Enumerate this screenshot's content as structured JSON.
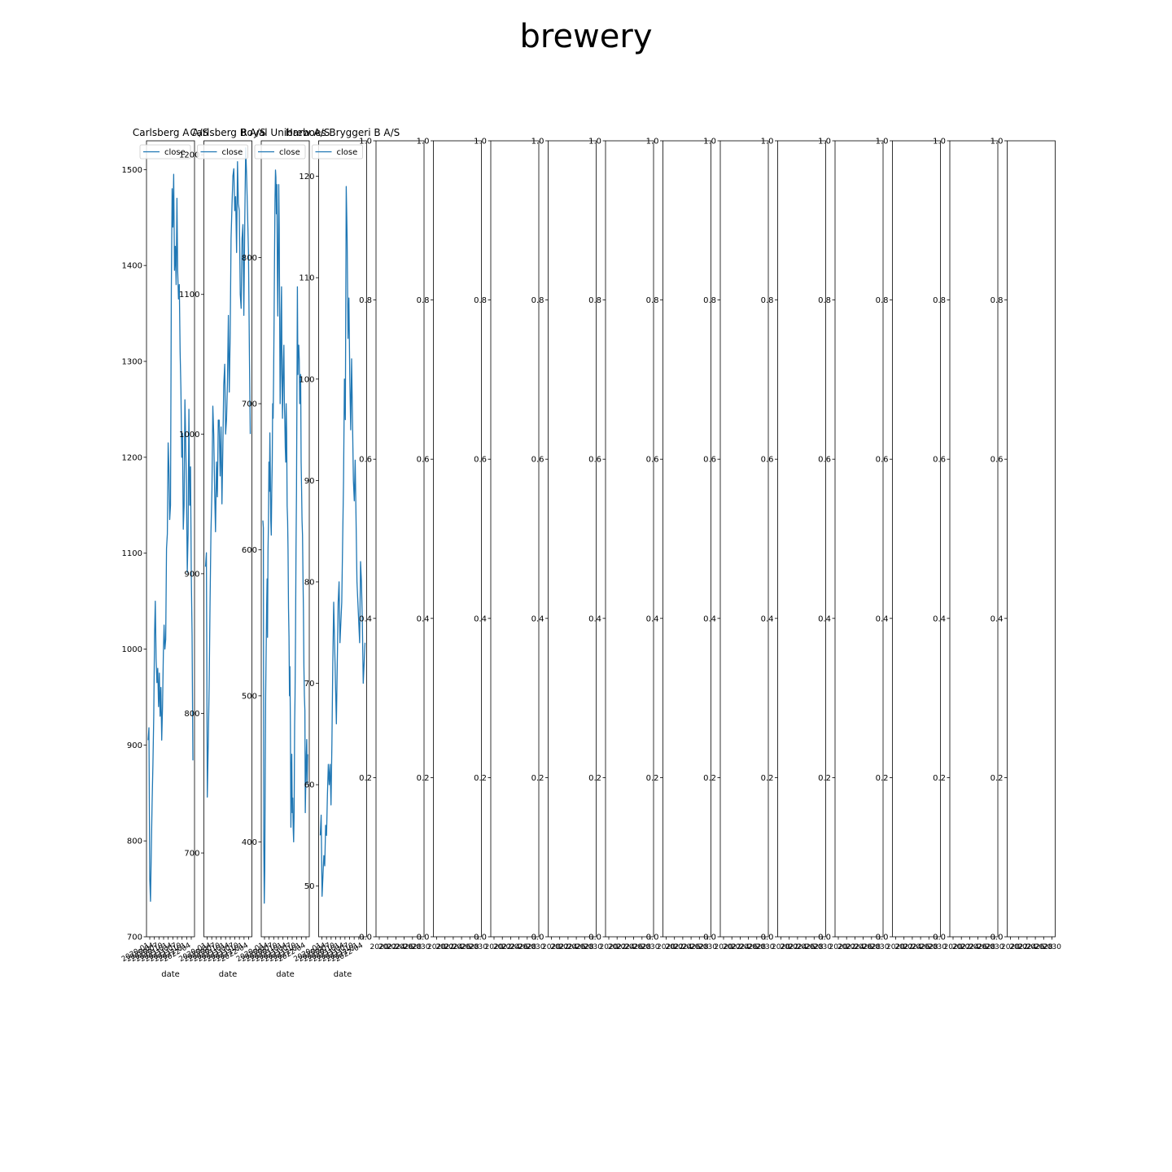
{
  "figure": {
    "title": "brewery"
  },
  "chart_data": [
    {
      "type": "line",
      "title": "Carlsberg A A/S",
      "xlabel": "date",
      "ylabel": "",
      "ylim": [
        700,
        1530
      ],
      "yticks": [
        700,
        800,
        900,
        1000,
        1100,
        1200,
        1300,
        1400,
        1500
      ],
      "xticklabels": [
        "2020-01",
        "2020-04",
        "2020-07",
        "2020-10",
        "2021-01",
        "2021-04",
        "2021-07",
        "2021-10",
        "2022-01",
        "2022-04"
      ],
      "grid": false,
      "legend": {
        "placement": "top-left",
        "entries": [
          "close"
        ]
      },
      "series": [
        {
          "name": "close",
          "color": "#1f77b4",
          "values": [
            905,
            918,
            760,
            737,
            790,
            840,
            880,
            930,
            1015,
            1050,
            990,
            965,
            980,
            940,
            975,
            930,
            960,
            905,
            940,
            995,
            1025,
            1000,
            1010,
            1105,
            1120,
            1215,
            1190,
            1135,
            1150,
            1375,
            1480,
            1440,
            1495,
            1395,
            1420,
            1380,
            1470,
            1395,
            1365,
            1380,
            1310,
            1270,
            1200,
            1225,
            1125,
            1150,
            1260,
            1215,
            1170,
            1080,
            1120,
            1250,
            1150,
            1190,
            1080,
            1015,
            884
          ]
        }
      ]
    },
    {
      "type": "line",
      "title": "Carlsberg B A/S",
      "xlabel": "date",
      "ylabel": "",
      "ylim": [
        640,
        1210
      ],
      "yticks": [
        700,
        800,
        900,
        1000,
        1100,
        1200
      ],
      "xticklabels": [
        "2020-01",
        "2020-04",
        "2020-07",
        "2020-10",
        "2021-01",
        "2021-04",
        "2021-07",
        "2021-10",
        "2022-01",
        "2022-04"
      ],
      "grid": false,
      "legend": {
        "placement": "top-left",
        "entries": [
          "close"
        ]
      },
      "series": [
        {
          "name": "close",
          "color": "#1f77b4",
          "values": [
            905,
            915,
            740,
            780,
            820,
            880,
            930,
            960,
            1020,
            1000,
            960,
            930,
            980,
            955,
            1010,
            1010,
            970,
            1005,
            950,
            990,
            1035,
            1050,
            1000,
            1010,
            1035,
            1085,
            1030,
            1070,
            1140,
            1165,
            1185,
            1190,
            1160,
            1170,
            1130,
            1195,
            1165,
            1160,
            1100,
            1090,
            1140,
            1150,
            1085,
            1155,
            1205,
            1185,
            1160,
            1130,
            1060,
            1000
          ]
        }
      ]
    },
    {
      "type": "line",
      "title": "Royal Unibrew A/S",
      "xlabel": "date",
      "ylabel": "",
      "ylim": [
        335,
        880
      ],
      "yticks": [
        400,
        500,
        600,
        700,
        800
      ],
      "xticklabels": [
        "2020-01",
        "2020-04",
        "2020-07",
        "2020-10",
        "2021-01",
        "2021-04",
        "2021-07",
        "2021-10",
        "2022-01",
        "2022-04"
      ],
      "grid": false,
      "legend": {
        "placement": "top-left",
        "entries": [
          "close"
        ]
      },
      "series": [
        {
          "name": "close",
          "color": "#1f77b4",
          "values": [
            620,
            615,
            400,
            358,
            380,
            450,
            500,
            530,
            560,
            580,
            540,
            600,
            620,
            660,
            640,
            680,
            650,
            620,
            610,
            640,
            660,
            700,
            690,
            720,
            760,
            800,
            840,
            860,
            855,
            830,
            850,
            790,
            760,
            800,
            850,
            820,
            760,
            700,
            720,
            760,
            780,
            720,
            690,
            710,
            730,
            740,
            700,
            690,
            670,
            660,
            700,
            680,
            630,
            620,
            600,
            560,
            540,
            500,
            520,
            480,
            410,
            440,
            460,
            420,
            430,
            410,
            400,
            420,
            480,
            500,
            540,
            600,
            640,
            700,
            780,
            720,
            740,
            740,
            730,
            700,
            710,
            720,
            660,
            640,
            620,
            610,
            580,
            560,
            520,
            500,
            490,
            420,
            440,
            460,
            470,
            440,
            460
          ]
        }
      ]
    },
    {
      "type": "line",
      "title": "Harboes Bryggeri B A/S",
      "xlabel": "date",
      "ylabel": "",
      "ylim": [
        45,
        123.5
      ],
      "yticks": [
        50,
        60,
        70,
        80,
        90,
        100,
        110,
        120
      ],
      "xticklabels": [
        "2020-01",
        "2020-04",
        "2020-07",
        "2020-10",
        "2021-01",
        "2021-04",
        "2021-07",
        "2021-10",
        "2022-01",
        "2022-04"
      ],
      "grid": false,
      "legend": {
        "placement": "top-left",
        "entries": [
          "close"
        ]
      },
      "series": [
        {
          "name": "close",
          "color": "#1f77b4",
          "values": [
            55,
            57,
            49,
            51,
            53,
            52,
            56,
            55,
            59,
            62,
            60,
            62,
            58,
            64,
            72,
            78,
            74,
            70,
            66,
            72,
            78,
            80,
            74,
            76,
            78,
            84,
            90,
            100,
            96,
            119,
            114,
            104,
            108,
            100,
            95,
            102,
            96,
            90,
            88,
            92,
            86,
            80,
            78,
            76,
            74,
            82,
            80,
            76,
            70,
            72,
            74
          ]
        }
      ]
    },
    {
      "type": "line",
      "title": "",
      "xlabel": "",
      "ylabel": "",
      "ylim": [
        0,
        1
      ],
      "yticks": [
        0.0,
        0.2,
        0.4,
        0.6,
        0.8,
        1.0
      ],
      "ytick_labels": [
        "0.0",
        "0.2",
        "0.4",
        "0.6",
        "0.8",
        "1.0"
      ],
      "xticklabels": [
        "2020",
        "2022",
        "2024",
        "2026",
        "2028",
        "2030"
      ],
      "grid": false,
      "series": []
    },
    {
      "type": "line",
      "title": "",
      "xlabel": "",
      "ylabel": "",
      "ylim": [
        0,
        1
      ],
      "yticks": [
        0.0,
        0.2,
        0.4,
        0.6,
        0.8,
        1.0
      ],
      "ytick_labels": [
        "0.0",
        "0.2",
        "0.4",
        "0.6",
        "0.8",
        "1.0"
      ],
      "xticklabels": [
        "2020",
        "2022",
        "2024",
        "2026",
        "2028",
        "2030"
      ],
      "grid": false,
      "series": []
    },
    {
      "type": "line",
      "title": "",
      "xlabel": "",
      "ylabel": "",
      "ylim": [
        0,
        1
      ],
      "yticks": [
        0.0,
        0.2,
        0.4,
        0.6,
        0.8,
        1.0
      ],
      "ytick_labels": [
        "0.0",
        "0.2",
        "0.4",
        "0.6",
        "0.8",
        "1.0"
      ],
      "xticklabels": [
        "2020",
        "2022",
        "2024",
        "2026",
        "2028",
        "2030"
      ],
      "grid": false,
      "series": []
    },
    {
      "type": "line",
      "title": "",
      "xlabel": "",
      "ylabel": "",
      "ylim": [
        0,
        1
      ],
      "yticks": [
        0.0,
        0.2,
        0.4,
        0.6,
        0.8,
        1.0
      ],
      "ytick_labels": [
        "0.0",
        "0.2",
        "0.4",
        "0.6",
        "0.8",
        "1.0"
      ],
      "xticklabels": [
        "2020",
        "2022",
        "2024",
        "2026",
        "2028",
        "2030"
      ],
      "grid": false,
      "series": []
    },
    {
      "type": "line",
      "title": "",
      "xlabel": "",
      "ylabel": "",
      "ylim": [
        0,
        1
      ],
      "yticks": [
        0.0,
        0.2,
        0.4,
        0.6,
        0.8,
        1.0
      ],
      "ytick_labels": [
        "0.0",
        "0.2",
        "0.4",
        "0.6",
        "0.8",
        "1.0"
      ],
      "xticklabels": [
        "2020",
        "2022",
        "2024",
        "2026",
        "2028",
        "2030"
      ],
      "grid": false,
      "series": []
    },
    {
      "type": "line",
      "title": "",
      "xlabel": "",
      "ylabel": "",
      "ylim": [
        0,
        1
      ],
      "yticks": [
        0.0,
        0.2,
        0.4,
        0.6,
        0.8,
        1.0
      ],
      "ytick_labels": [
        "0.0",
        "0.2",
        "0.4",
        "0.6",
        "0.8",
        "1.0"
      ],
      "xticklabels": [
        "2020",
        "2022",
        "2024",
        "2026",
        "2028",
        "2030"
      ],
      "grid": false,
      "series": []
    },
    {
      "type": "line",
      "title": "",
      "xlabel": "",
      "ylabel": "",
      "ylim": [
        0,
        1
      ],
      "yticks": [
        0.0,
        0.2,
        0.4,
        0.6,
        0.8,
        1.0
      ],
      "ytick_labels": [
        "0.0",
        "0.2",
        "0.4",
        "0.6",
        "0.8",
        "1.0"
      ],
      "xticklabels": [
        "2020",
        "2022",
        "2024",
        "2026",
        "2028",
        "2030"
      ],
      "grid": false,
      "series": []
    },
    {
      "type": "line",
      "title": "",
      "xlabel": "",
      "ylabel": "",
      "ylim": [
        0,
        1
      ],
      "yticks": [
        0.0,
        0.2,
        0.4,
        0.6,
        0.8,
        1.0
      ],
      "ytick_labels": [
        "0.0",
        "0.2",
        "0.4",
        "0.6",
        "0.8",
        "1.0"
      ],
      "xticklabels": [
        "2020",
        "2022",
        "2024",
        "2026",
        "2028",
        "2030"
      ],
      "grid": false,
      "series": []
    },
    {
      "type": "line",
      "title": "",
      "xlabel": "",
      "ylabel": "",
      "ylim": [
        0,
        1
      ],
      "yticks": [
        0.0,
        0.2,
        0.4,
        0.6,
        0.8,
        1.0
      ],
      "ytick_labels": [
        "0.0",
        "0.2",
        "0.4",
        "0.6",
        "0.8",
        "1.0"
      ],
      "xticklabels": [
        "2020",
        "2022",
        "2024",
        "2026",
        "2028",
        "2030"
      ],
      "grid": false,
      "series": []
    },
    {
      "type": "line",
      "title": "",
      "xlabel": "",
      "ylabel": "",
      "ylim": [
        0,
        1
      ],
      "yticks": [
        0.0,
        0.2,
        0.4,
        0.6,
        0.8,
        1.0
      ],
      "ytick_labels": [
        "0.0",
        "0.2",
        "0.4",
        "0.6",
        "0.8",
        "1.0"
      ],
      "xticklabels": [
        "2020",
        "2022",
        "2024",
        "2026",
        "2028",
        "2030"
      ],
      "grid": false,
      "series": []
    },
    {
      "type": "line",
      "title": "",
      "xlabel": "",
      "ylabel": "",
      "ylim": [
        0,
        1
      ],
      "yticks": [
        0.0,
        0.2,
        0.4,
        0.6,
        0.8,
        1.0
      ],
      "ytick_labels": [
        "0.0",
        "0.2",
        "0.4",
        "0.6",
        "0.8",
        "1.0"
      ],
      "xticklabels": [
        "2020",
        "2022",
        "2024",
        "2026",
        "2028",
        "2030"
      ],
      "grid": false,
      "series": []
    },
    {
      "type": "line",
      "title": "",
      "xlabel": "",
      "ylabel": "",
      "ylim": [
        0,
        1
      ],
      "yticks": [
        0.0,
        0.2,
        0.4,
        0.6,
        0.8,
        1.0
      ],
      "ytick_labels": [
        "0.0",
        "0.2",
        "0.4",
        "0.6",
        "0.8",
        "1.0"
      ],
      "xticklabels": [
        "2020",
        "2022",
        "2024",
        "2026",
        "2028",
        "2030"
      ],
      "grid": false,
      "series": []
    }
  ]
}
